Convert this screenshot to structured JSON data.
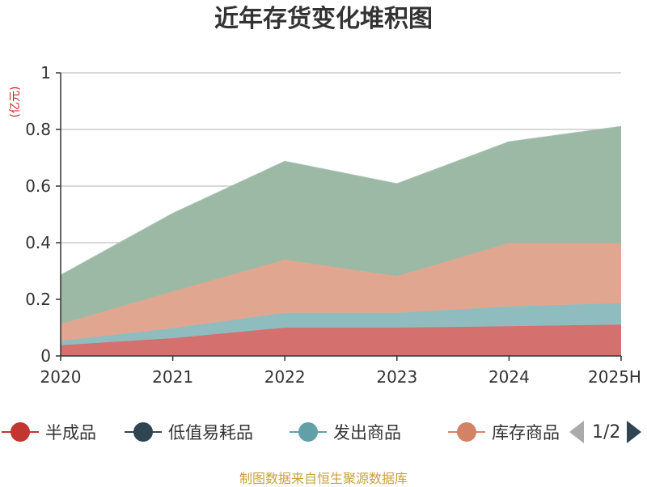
{
  "title": "近年存货变化堆积图",
  "unit_label": "(亿元)",
  "source": "制图数据来自恒生聚源数据库",
  "pager": {
    "text": "1/2"
  },
  "legend": [
    {
      "name": "半成品",
      "color": "#c23531"
    },
    {
      "name": "低值易耗品",
      "color": "#2f4554"
    },
    {
      "name": "发出商品",
      "color": "#61a0a8"
    },
    {
      "name": "库存商品",
      "color": "#d48265"
    }
  ],
  "chart_data": {
    "type": "area",
    "stacked": true,
    "x": [
      "2020",
      "2021",
      "2022",
      "2023",
      "2024",
      "2025H"
    ],
    "ylim": [
      0,
      1
    ],
    "yticks": [
      "0",
      "0.2",
      "0.4",
      "0.6",
      "0.8",
      "1"
    ],
    "grid": true,
    "series": [
      {
        "name": "半成品",
        "color": "#d4706e",
        "values": [
          0.038,
          0.063,
          0.1,
          0.1,
          0.105,
          0.111
        ]
      },
      {
        "name": "发出商品",
        "color": "#8fbcbf",
        "values": [
          0.015,
          0.035,
          0.052,
          0.052,
          0.07,
          0.076
        ]
      },
      {
        "name": "库存商品",
        "color": "#e0a68f",
        "values": [
          0.06,
          0.13,
          0.188,
          0.13,
          0.224,
          0.212
        ]
      },
      {
        "name": "",
        "color": "#9cb9a6",
        "values": [
          0.172,
          0.275,
          0.347,
          0.326,
          0.357,
          0.411
        ]
      }
    ]
  }
}
